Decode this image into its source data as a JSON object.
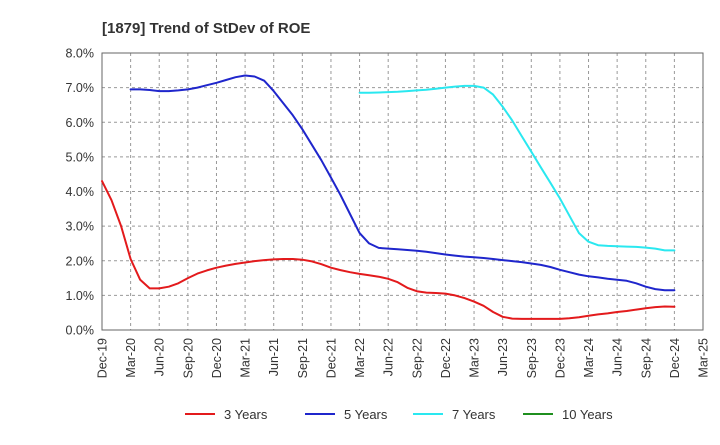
{
  "chart_data": {
    "type": "line",
    "title": "[1879]  Trend of StDev of ROE",
    "xlabel": "",
    "ylabel": "",
    "x_ticks": [
      "Dec-19",
      "Mar-20",
      "Jun-20",
      "Sep-20",
      "Dec-20",
      "Mar-21",
      "Jun-21",
      "Sep-21",
      "Dec-21",
      "Mar-22",
      "Jun-22",
      "Sep-22",
      "Dec-22",
      "Mar-23",
      "Jun-23",
      "Sep-23",
      "Dec-23",
      "Mar-24",
      "Jun-24",
      "Sep-24",
      "Dec-24",
      "Mar-25"
    ],
    "y_ticks": [
      "0.0%",
      "1.0%",
      "2.0%",
      "3.0%",
      "4.0%",
      "5.0%",
      "6.0%",
      "7.0%",
      "8.0%"
    ],
    "ylim": [
      0,
      8
    ],
    "y_unit": "%",
    "grid": "dashed",
    "legend_position": "bottom",
    "series": [
      {
        "name": "3 Years",
        "color": "#e31a1c",
        "x": [
          "Dec-19",
          "Jan-20",
          "Feb-20",
          "Mar-20",
          "Apr-20",
          "May-20",
          "Jun-20",
          "Jul-20",
          "Aug-20",
          "Sep-20",
          "Oct-20",
          "Nov-20",
          "Dec-20",
          "Jan-21",
          "Feb-21",
          "Mar-21",
          "Apr-21",
          "May-21",
          "Jun-21",
          "Jul-21",
          "Aug-21",
          "Sep-21",
          "Oct-21",
          "Nov-21",
          "Dec-21",
          "Jan-22",
          "Feb-22",
          "Mar-22",
          "Apr-22",
          "May-22",
          "Jun-22",
          "Jul-22",
          "Aug-22",
          "Sep-22",
          "Oct-22",
          "Nov-22",
          "Dec-22",
          "Jan-23",
          "Feb-23",
          "Mar-23",
          "Apr-23",
          "May-23",
          "Jun-23",
          "Jul-23",
          "Aug-23",
          "Sep-23",
          "Oct-23",
          "Nov-23",
          "Dec-23",
          "Jan-24",
          "Feb-24",
          "Mar-24",
          "Apr-24",
          "May-24",
          "Jun-24",
          "Jul-24",
          "Aug-24",
          "Sep-24",
          "Oct-24",
          "Nov-24",
          "Dec-24"
        ],
        "y": [
          4.3,
          3.75,
          3.0,
          2.05,
          1.45,
          1.2,
          1.2,
          1.25,
          1.35,
          1.5,
          1.63,
          1.72,
          1.8,
          1.86,
          1.91,
          1.95,
          1.99,
          2.02,
          2.04,
          2.05,
          2.05,
          2.03,
          1.98,
          1.9,
          1.8,
          1.73,
          1.67,
          1.62,
          1.58,
          1.54,
          1.48,
          1.38,
          1.22,
          1.12,
          1.08,
          1.07,
          1.05,
          1.0,
          0.92,
          0.82,
          0.7,
          0.52,
          0.38,
          0.33,
          0.32,
          0.32,
          0.32,
          0.32,
          0.32,
          0.34,
          0.37,
          0.41,
          0.45,
          0.48,
          0.52,
          0.55,
          0.59,
          0.63,
          0.66,
          0.68,
          0.67
        ]
      },
      {
        "name": "5 Years",
        "color": "#1f26cc",
        "x": [
          "Mar-20",
          "Apr-20",
          "May-20",
          "Jun-20",
          "Jul-20",
          "Aug-20",
          "Sep-20",
          "Oct-20",
          "Nov-20",
          "Dec-20",
          "Jan-21",
          "Feb-21",
          "Mar-21",
          "Apr-21",
          "May-21",
          "Jun-21",
          "Jul-21",
          "Aug-21",
          "Sep-21",
          "Oct-21",
          "Nov-21",
          "Dec-21",
          "Jan-22",
          "Feb-22",
          "Mar-22",
          "Apr-22",
          "May-22",
          "Jun-22",
          "Jul-22",
          "Aug-22",
          "Sep-22",
          "Oct-22",
          "Nov-22",
          "Dec-22",
          "Jan-23",
          "Feb-23",
          "Mar-23",
          "Apr-23",
          "May-23",
          "Jun-23",
          "Jul-23",
          "Aug-23",
          "Sep-23",
          "Oct-23",
          "Nov-23",
          "Dec-23",
          "Jan-24",
          "Feb-24",
          "Mar-24",
          "Apr-24",
          "May-24",
          "Jun-24",
          "Jul-24",
          "Aug-24",
          "Sep-24",
          "Oct-24",
          "Nov-24",
          "Dec-24"
        ],
        "y": [
          6.95,
          6.95,
          6.93,
          6.9,
          6.9,
          6.92,
          6.95,
          7.0,
          7.07,
          7.14,
          7.22,
          7.3,
          7.35,
          7.32,
          7.2,
          6.9,
          6.55,
          6.2,
          5.8,
          5.35,
          4.9,
          4.4,
          3.9,
          3.35,
          2.8,
          2.5,
          2.37,
          2.35,
          2.33,
          2.31,
          2.29,
          2.26,
          2.22,
          2.18,
          2.15,
          2.12,
          2.1,
          2.08,
          2.05,
          2.02,
          1.99,
          1.96,
          1.92,
          1.88,
          1.82,
          1.74,
          1.67,
          1.6,
          1.55,
          1.52,
          1.48,
          1.45,
          1.42,
          1.35,
          1.25,
          1.18,
          1.15,
          1.15
        ]
      },
      {
        "name": "7 Years",
        "color": "#2ae8f0",
        "x": [
          "Mar-22",
          "Apr-22",
          "May-22",
          "Jun-22",
          "Jul-22",
          "Aug-22",
          "Sep-22",
          "Oct-22",
          "Nov-22",
          "Dec-22",
          "Jan-23",
          "Feb-23",
          "Mar-23",
          "Apr-23",
          "May-23",
          "Jun-23",
          "Jul-23",
          "Aug-23",
          "Sep-23",
          "Oct-23",
          "Nov-23",
          "Dec-23",
          "Jan-24",
          "Feb-24",
          "Mar-24",
          "Apr-24",
          "May-24",
          "Jun-24",
          "Jul-24",
          "Aug-24",
          "Sep-24",
          "Oct-24",
          "Nov-24",
          "Dec-24"
        ],
        "y": [
          6.85,
          6.85,
          6.86,
          6.87,
          6.88,
          6.9,
          6.92,
          6.94,
          6.97,
          7.0,
          7.03,
          7.05,
          7.05,
          7.0,
          6.8,
          6.45,
          6.05,
          5.6,
          5.15,
          4.7,
          4.25,
          3.8,
          3.3,
          2.8,
          2.55,
          2.45,
          2.43,
          2.42,
          2.41,
          2.4,
          2.38,
          2.35,
          2.3,
          2.3
        ]
      },
      {
        "name": "10 Years",
        "color": "#1f8f1f",
        "x": [],
        "y": []
      }
    ]
  }
}
